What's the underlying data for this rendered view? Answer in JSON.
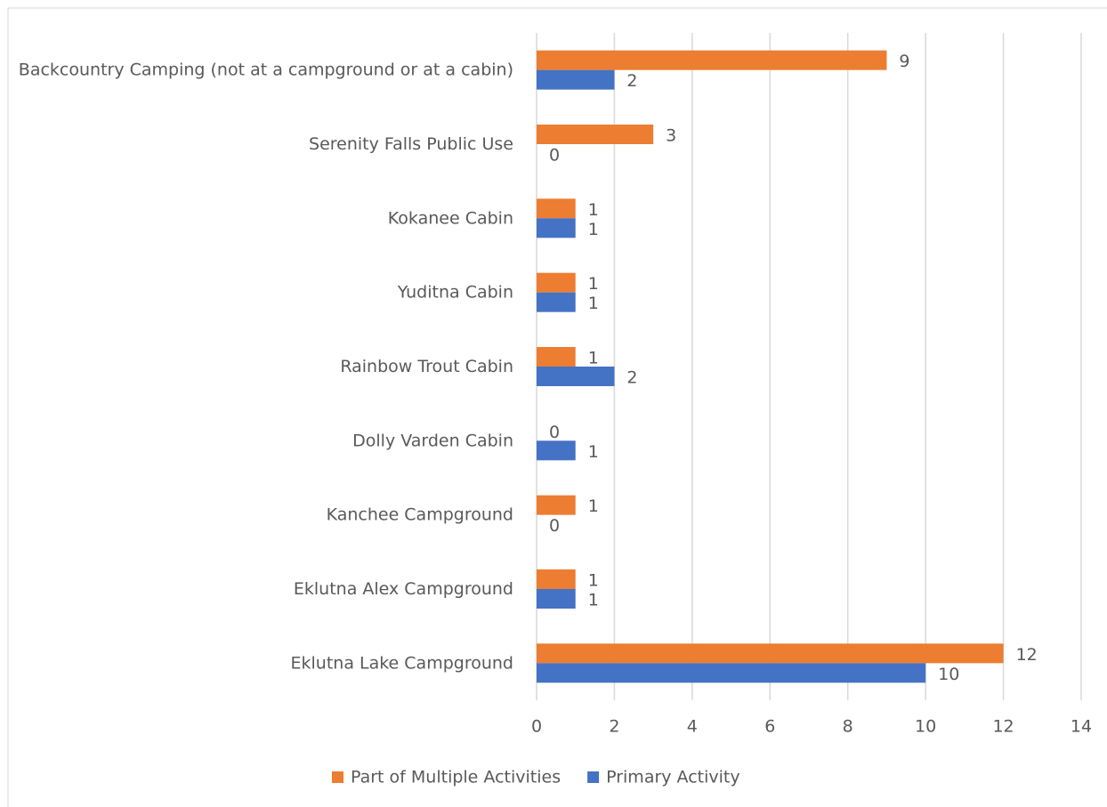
{
  "chart_data": {
    "type": "bar",
    "orientation": "horizontal",
    "categories": [
      "Backcountry Camping (not at a campground or at a cabin)",
      "Serenity Falls Public Use",
      "Kokanee Cabin",
      "Yuditna Cabin",
      "Rainbow Trout Cabin",
      "Dolly Varden Cabin",
      "Kanchee Campground",
      "Eklutna Alex Campground",
      "Eklutna Lake Campground"
    ],
    "series": [
      {
        "name": "Part of Multiple Activities",
        "color": "#ed7d31",
        "values": [
          9,
          3,
          1,
          1,
          1,
          0,
          1,
          1,
          12
        ]
      },
      {
        "name": "Primary Activity",
        "color": "#4472c4",
        "values": [
          2,
          0,
          1,
          1,
          2,
          1,
          0,
          1,
          10
        ]
      }
    ],
    "xlim": [
      0,
      14
    ],
    "xticks": [
      0,
      2,
      4,
      6,
      8,
      10,
      12,
      14
    ],
    "grid": true,
    "legend": "bottom"
  }
}
